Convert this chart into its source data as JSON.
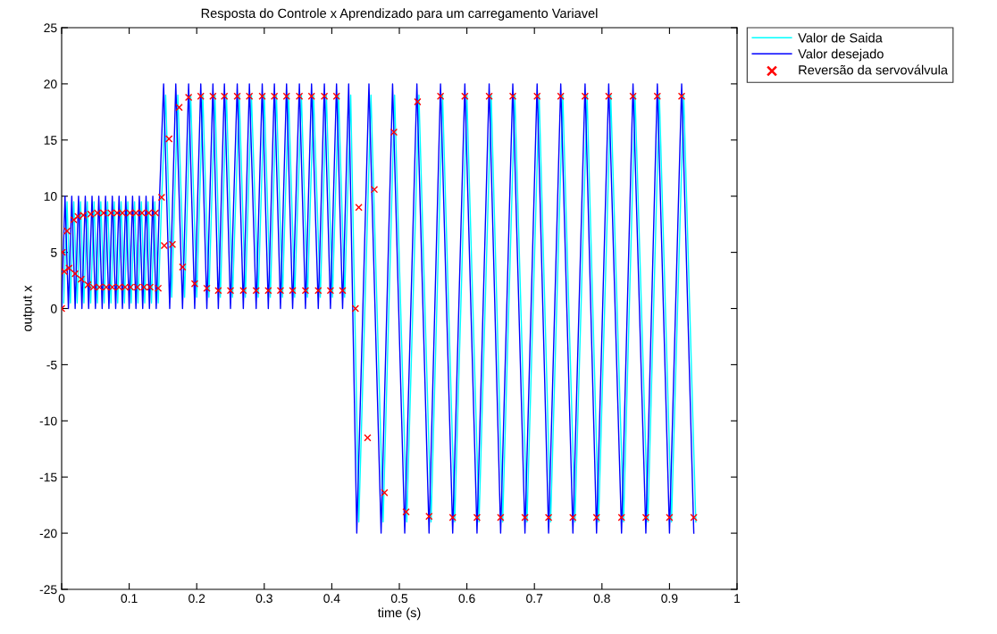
{
  "chart_data": {
    "type": "line",
    "title": "Resposta do Controle x Aprendizado para um carregamento Variavel",
    "xlabel": "time (s)",
    "ylabel": "output x",
    "xlim": [
      0,
      1
    ],
    "xticks": [
      0,
      0.1,
      0.2,
      0.3,
      0.4,
      0.5,
      0.6,
      0.7,
      0.8,
      0.9,
      1
    ],
    "ylim": [
      -25,
      25
    ],
    "yticks": [
      -25,
      -20,
      -15,
      -10,
      -5,
      0,
      5,
      10,
      15,
      20,
      25
    ],
    "grid": false,
    "legend": "top right",
    "marker": "none",
    "line_style": "solid",
    "series": [
      {
        "name": "Valor de Saida",
        "color": "#00ffff",
        "x": [
          0.003,
          0.008,
          0.013,
          0.018,
          0.023,
          0.028,
          0.033,
          0.038,
          0.043,
          0.048,
          0.053,
          0.058,
          0.063,
          0.068,
          0.073,
          0.078,
          0.083,
          0.088,
          0.093,
          0.098,
          0.103,
          0.108,
          0.113,
          0.118,
          0.123,
          0.128,
          0.133,
          0.138,
          0.143,
          0.148,
          0.154,
          0.163,
          0.172,
          0.182,
          0.191,
          0.2,
          0.209,
          0.218,
          0.227,
          0.235,
          0.244,
          0.253,
          0.263,
          0.272,
          0.281,
          0.291,
          0.3,
          0.309,
          0.318,
          0.327,
          0.336,
          0.345,
          0.355,
          0.364,
          0.373,
          0.383,
          0.392,
          0.401,
          0.41,
          0.419,
          0.428,
          0.44,
          0.458,
          0.476,
          0.493,
          0.511,
          0.529,
          0.547,
          0.564,
          0.582,
          0.6,
          0.618,
          0.636,
          0.653,
          0.671,
          0.689,
          0.707,
          0.724,
          0.742,
          0.76,
          0.778,
          0.795,
          0.813,
          0.832,
          0.849,
          0.868,
          0.885,
          0.903,
          0.921,
          0.939
        ],
        "values": [
          0.5,
          9.5,
          0.5,
          9.5,
          0.5,
          9.5,
          0.5,
          9.5,
          0.5,
          9.5,
          0.5,
          9.5,
          0.5,
          9.5,
          0.5,
          9.5,
          0.5,
          9.5,
          0.5,
          9.5,
          0.5,
          9.5,
          0.5,
          9.5,
          0.5,
          9.5,
          0.5,
          9.5,
          0.5,
          9.5,
          19,
          1,
          19,
          1,
          19,
          1,
          19,
          1,
          19,
          1,
          19,
          1,
          19,
          1,
          19,
          1,
          19,
          1,
          19,
          1,
          19,
          1,
          19,
          1,
          19,
          1,
          19,
          1,
          19,
          1,
          19,
          -19,
          19,
          -19,
          19,
          -19,
          19,
          -19,
          19,
          -19,
          19,
          -19,
          19,
          -19,
          19,
          -19,
          19,
          -19,
          19,
          -19,
          19,
          -19,
          19,
          -19,
          19,
          -19,
          19,
          -19,
          19,
          -19
        ]
      },
      {
        "name": "Valor desejado",
        "color": "#0000ff",
        "x": [
          0,
          0.005,
          0.01,
          0.015,
          0.02,
          0.025,
          0.03,
          0.035,
          0.04,
          0.045,
          0.05,
          0.055,
          0.06,
          0.065,
          0.07,
          0.075,
          0.08,
          0.085,
          0.09,
          0.095,
          0.1,
          0.105,
          0.11,
          0.115,
          0.12,
          0.125,
          0.13,
          0.135,
          0.14,
          0.145,
          0.151,
          0.16,
          0.169,
          0.179,
          0.188,
          0.197,
          0.206,
          0.215,
          0.224,
          0.232,
          0.241,
          0.25,
          0.26,
          0.269,
          0.278,
          0.288,
          0.297,
          0.306,
          0.315,
          0.324,
          0.333,
          0.342,
          0.352,
          0.361,
          0.37,
          0.38,
          0.389,
          0.398,
          0.407,
          0.416,
          0.425,
          0.437,
          0.455,
          0.473,
          0.49,
          0.508,
          0.526,
          0.544,
          0.561,
          0.579,
          0.597,
          0.615,
          0.633,
          0.65,
          0.668,
          0.686,
          0.704,
          0.721,
          0.739,
          0.757,
          0.775,
          0.792,
          0.81,
          0.829,
          0.846,
          0.865,
          0.882,
          0.9,
          0.918,
          0.936
        ],
        "values": [
          0,
          10,
          0,
          10,
          0,
          10,
          0,
          10,
          0,
          10,
          0,
          10,
          0,
          10,
          0,
          10,
          0,
          10,
          0,
          10,
          0,
          10,
          0,
          10,
          0,
          10,
          0,
          10,
          0,
          10,
          20,
          0,
          20,
          0,
          20,
          0,
          20,
          0,
          20,
          0,
          20,
          0,
          20,
          0,
          20,
          0,
          20,
          0,
          20,
          0,
          20,
          0,
          20,
          0,
          20,
          0,
          20,
          0,
          20,
          0,
          20,
          -20,
          20,
          -20,
          20,
          -20,
          20,
          -20,
          20,
          -20,
          20,
          -20,
          20,
          -20,
          20,
          -20,
          20,
          -20,
          20,
          -20,
          20,
          -20,
          20,
          -20,
          20,
          -20,
          20,
          -20,
          20,
          -20
        ]
      },
      {
        "name": "Reversão da servoválvula",
        "color": "#ff0000",
        "type": "scatter",
        "marker": "cross",
        "x": [
          0.0,
          0.001,
          0.004,
          0.008,
          0.011,
          0.018,
          0.02,
          0.024,
          0.029,
          0.032,
          0.039,
          0.043,
          0.047,
          0.053,
          0.056,
          0.062,
          0.066,
          0.073,
          0.075,
          0.082,
          0.085,
          0.09,
          0.094,
          0.101,
          0.102,
          0.11,
          0.112,
          0.119,
          0.122,
          0.129,
          0.131,
          0.139,
          0.143,
          0.148,
          0.152,
          0.159,
          0.164,
          0.174,
          0.179,
          0.188,
          0.197,
          0.206,
          0.215,
          0.224,
          0.232,
          0.241,
          0.25,
          0.26,
          0.269,
          0.278,
          0.288,
          0.297,
          0.306,
          0.315,
          0.324,
          0.333,
          0.342,
          0.352,
          0.361,
          0.37,
          0.38,
          0.389,
          0.398,
          0.407,
          0.416,
          0.435,
          0.44,
          0.453,
          0.463,
          0.478,
          0.492,
          0.51,
          0.527,
          0.544,
          0.561,
          0.579,
          0.597,
          0.615,
          0.633,
          0.65,
          0.668,
          0.686,
          0.704,
          0.721,
          0.739,
          0.757,
          0.775,
          0.792,
          0.81,
          0.829,
          0.846,
          0.865,
          0.882,
          0.9,
          0.918,
          0.936
        ],
        "values": [
          0,
          5.0,
          3.3,
          6.9,
          3.6,
          7.9,
          3.1,
          8.2,
          2.6,
          8.3,
          2.1,
          8.4,
          1.9,
          8.5,
          1.9,
          8.5,
          1.9,
          8.5,
          1.9,
          8.5,
          1.9,
          8.5,
          1.9,
          8.5,
          1.9,
          8.5,
          1.9,
          8.5,
          1.9,
          8.5,
          1.9,
          8.5,
          1.8,
          9.9,
          5.6,
          15.1,
          5.7,
          17.9,
          3.7,
          18.8,
          2.2,
          18.9,
          1.8,
          18.9,
          1.6,
          18.9,
          1.6,
          18.9,
          1.6,
          18.9,
          1.6,
          18.9,
          1.6,
          18.9,
          1.6,
          18.9,
          1.6,
          18.9,
          1.6,
          18.9,
          1.6,
          18.9,
          1.6,
          18.9,
          1.6,
          0,
          9.0,
          -11.5,
          10.6,
          -16.4,
          15.7,
          -18.1,
          18.4,
          -18.5,
          18.9,
          -18.6,
          18.9,
          -18.6,
          18.9,
          -18.6,
          18.9,
          -18.6,
          18.9,
          -18.6,
          18.9,
          -18.6,
          18.9,
          -18.6,
          18.9,
          -18.6,
          18.9,
          -18.6,
          18.9,
          -18.6,
          18.9,
          -18.6
        ]
      }
    ]
  }
}
